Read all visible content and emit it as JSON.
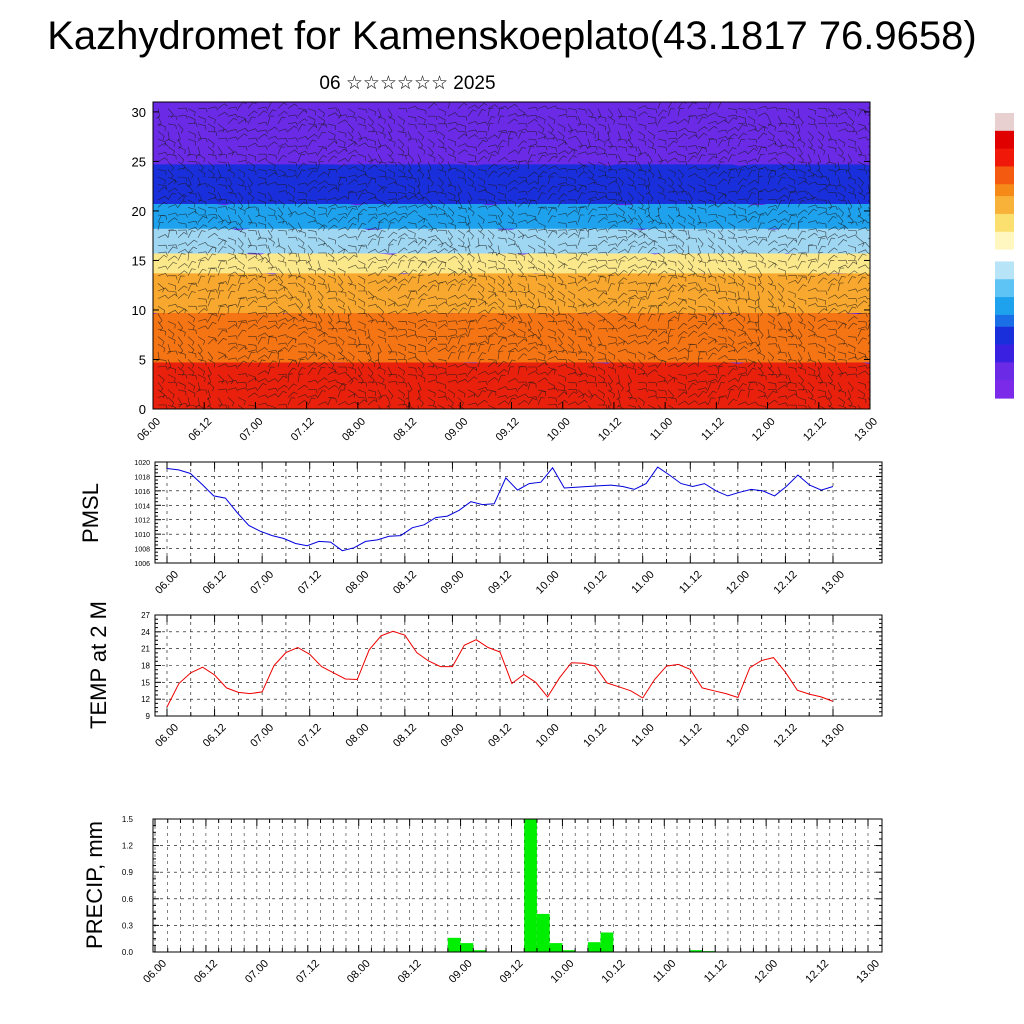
{
  "page": {
    "title": "Kazhydromet for Kamenskoeplato(43.1817 76.9658)",
    "subtitle": "06 ☆☆☆☆☆☆ 2025"
  },
  "chart_data": [
    {
      "type": "heatmap",
      "xlabel": "",
      "ylabel": "",
      "x_tick_labels": [
        "06.00",
        "06.12",
        "07.00",
        "07.12",
        "08.00",
        "08.12",
        "09.00",
        "09.12",
        "10.00",
        "10.12",
        "11.00",
        "11.12",
        "12.00",
        "12.12",
        "13.00"
      ],
      "y_ticks": [
        0,
        5,
        10,
        15,
        20,
        25,
        30
      ],
      "ylim": [
        0,
        31
      ],
      "color_bands": [
        {
          "y_from": 0,
          "y_to": 5,
          "color": "#e8200c"
        },
        {
          "y_from": 5,
          "y_to": 10,
          "color": "#f57413"
        },
        {
          "y_from": 10,
          "y_to": 14,
          "color": "#f8a82e"
        },
        {
          "y_from": 14,
          "y_to": 16,
          "color": "#fbe88a"
        },
        {
          "y_from": 16,
          "y_to": 18.5,
          "color": "#9fd6f2"
        },
        {
          "y_from": 18.5,
          "y_to": 21,
          "color": "#1ea2ee"
        },
        {
          "y_from": 21,
          "y_to": 25,
          "color": "#1a2fdc"
        },
        {
          "y_from": 25,
          "y_to": 31,
          "color": "#6a2ae6"
        }
      ],
      "overlay": "wind barbs"
    },
    {
      "type": "line",
      "ylabel": "PMSL",
      "x_tick_labels": [
        "06.00",
        "06.12",
        "07.00",
        "07.12",
        "08.00",
        "08.12",
        "09.00",
        "09.12",
        "10.00",
        "10.12",
        "11.00",
        "11.12",
        "12.00",
        "12.12",
        "13.00"
      ],
      "y_ticks": [
        1006,
        1008,
        1010,
        1012,
        1014,
        1016,
        1018,
        1020
      ],
      "ylim": [
        1006,
        1020
      ],
      "grid": true,
      "series": [
        {
          "color": "#0000dd",
          "values": [
            1019.1,
            1018.9,
            1018.4,
            1016.9,
            1015.3,
            1015.0,
            1013.0,
            1011.2,
            1010.4,
            1009.8,
            1009.4,
            1008.7,
            1008.4,
            1009.0,
            1008.9,
            1007.7,
            1008.1,
            1009.0,
            1009.2,
            1009.7,
            1009.8,
            1010.9,
            1011.3,
            1012.3,
            1012.5,
            1013.3,
            1014.5,
            1014.1,
            1014.2,
            1017.8,
            1016.1,
            1017.0,
            1017.2,
            1019.2,
            1016.4,
            1016.5,
            1016.6,
            1016.7,
            1016.8,
            1016.6,
            1016.2,
            1017.0,
            1019.3,
            1018.2,
            1017.0,
            1016.6,
            1017.0,
            1016.0,
            1015.3,
            1015.8,
            1016.2,
            1016.0,
            1015.3,
            1016.6,
            1018.2,
            1016.8,
            1016.1,
            1016.6
          ]
        }
      ]
    },
    {
      "type": "line",
      "ylabel": "TEMP at 2 M",
      "x_tick_labels": [
        "06.00",
        "06.12",
        "07.00",
        "07.12",
        "08.00",
        "08.12",
        "09.00",
        "09.12",
        "10.00",
        "10.12",
        "11.00",
        "11.12",
        "12.00",
        "12.12",
        "13.00"
      ],
      "y_ticks": [
        9,
        12,
        15,
        18,
        21,
        24,
        27
      ],
      "ylim": [
        9,
        27
      ],
      "grid": true,
      "series": [
        {
          "color": "#ee0000",
          "values": [
            10.6,
            14.8,
            16.7,
            17.7,
            16.3,
            14.0,
            13.2,
            13.0,
            13.3,
            18.0,
            20.3,
            21.2,
            20.0,
            17.8,
            16.7,
            15.6,
            15.5,
            20.8,
            23.3,
            24.1,
            23.4,
            20.3,
            18.8,
            17.8,
            17.8,
            21.6,
            22.6,
            21.2,
            20.4,
            14.8,
            16.4,
            15.0,
            12.4,
            15.8,
            18.5,
            18.4,
            17.9,
            14.9,
            14.2,
            13.5,
            12.2,
            15.5,
            17.9,
            18.2,
            17.3,
            14.0,
            13.5,
            13.0,
            12.3,
            17.6,
            18.9,
            19.4,
            16.8,
            13.6,
            12.9,
            12.4,
            11.6
          ]
        }
      ]
    },
    {
      "type": "bar",
      "ylabel": "PRECIP, mm",
      "x_tick_labels": [
        "06.00",
        "06.12",
        "07.00",
        "07.12",
        "08.00",
        "08.12",
        "09.00",
        "09.12",
        "10.00",
        "10.12",
        "11.00",
        "11.12",
        "12.00",
        "12.12",
        "13.00"
      ],
      "y_tick_labels": [
        "0.0",
        "0.3",
        "0.6",
        "0.9",
        "1.2",
        "1.5"
      ],
      "ylim": [
        0,
        1.5
      ],
      "grid": true,
      "bar_color": "#00ee00",
      "bars": [
        {
          "slot": 23.5,
          "value": 0.16
        },
        {
          "slot": 24.5,
          "value": 0.1
        },
        {
          "slot": 25.5,
          "value": 0.02
        },
        {
          "slot": 29.5,
          "value": 1.5
        },
        {
          "slot": 30.5,
          "value": 0.43
        },
        {
          "slot": 31.5,
          "value": 0.1
        },
        {
          "slot": 32.5,
          "value": 0.02
        },
        {
          "slot": 34.5,
          "value": 0.11
        },
        {
          "slot": 35.5,
          "value": 0.22
        },
        {
          "slot": 42.5,
          "value": 0.02
        },
        {
          "slot": 43.5,
          "value": 0.01
        }
      ]
    }
  ]
}
